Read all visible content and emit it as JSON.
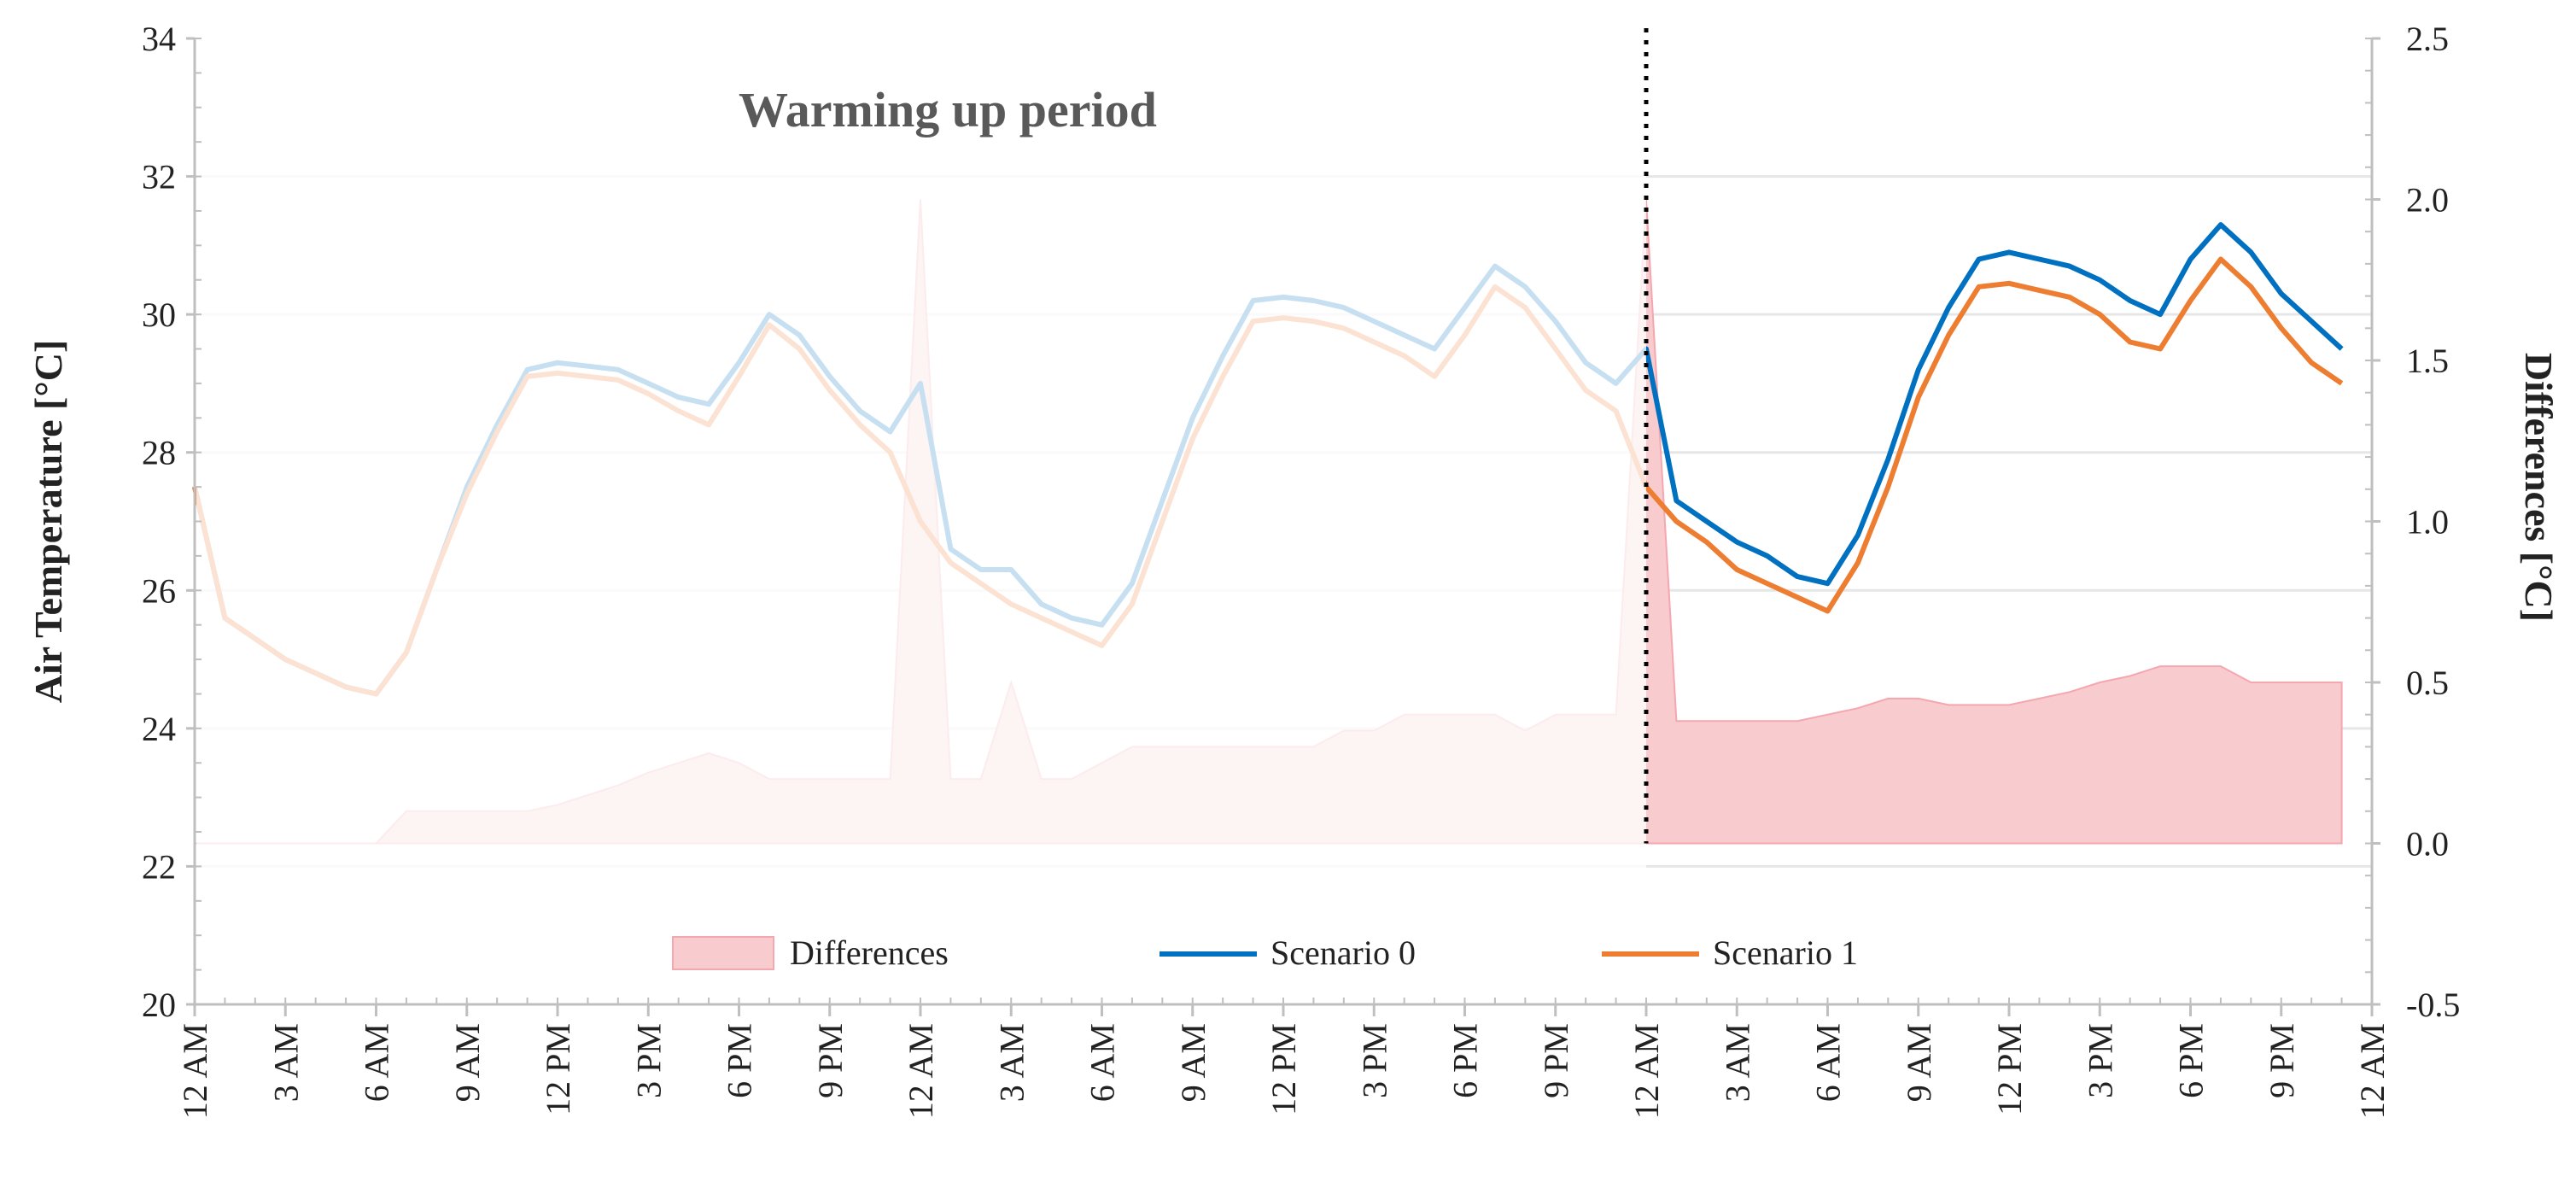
{
  "chart_data": {
    "type": "line",
    "title": "",
    "annotation": "Warming up period",
    "warmup_end_hour": 48,
    "xlabel": "",
    "ylabel_left": "Air Temperature [°C]",
    "ylabel_right": "Differences [°C]",
    "ylim_left": [
      20,
      34
    ],
    "yticks_left": [
      "20",
      "22",
      "24",
      "26",
      "28",
      "30",
      "32",
      "34"
    ],
    "ylim_right": [
      -0.5,
      2.5
    ],
    "yticks_right": [
      "-0.5",
      "0.0",
      "0.5",
      "1.0",
      "1.5",
      "2.0",
      "2.5"
    ],
    "x_range_hours": [
      0,
      72
    ],
    "x_ticks": [
      "12 AM",
      "3 AM",
      "6 AM",
      "9 AM",
      "12 PM",
      "3 PM",
      "6 PM",
      "9 PM",
      "12 AM",
      "3 AM",
      "6 AM",
      "9 AM",
      "12 PM",
      "3 PM",
      "6 PM",
      "9 PM",
      "12 AM",
      "3 AM",
      "6 AM",
      "9 AM",
      "12 PM",
      "3 PM",
      "6 PM",
      "9 PM",
      "12 AM"
    ],
    "legend": [
      "Differences",
      "Scenario 0",
      "Scenario 1"
    ],
    "colors": {
      "scenario0": "#0070C0",
      "scenario1": "#ED7D31",
      "differences_fill": "#F8CBCF",
      "differences_line": "#F4A7AE",
      "grid": "#E6E6E6",
      "axis": "#BFBFBF"
    },
    "series": [
      {
        "name": "Scenario 0",
        "axis": "left",
        "x": [
          0,
          1,
          2,
          3,
          4,
          5,
          6,
          7,
          8,
          9,
          10,
          11,
          12,
          13,
          14,
          15,
          16,
          17,
          18,
          19,
          20,
          21,
          22,
          23,
          24,
          25,
          26,
          27,
          28,
          29,
          30,
          31,
          32,
          33,
          34,
          35,
          36,
          37,
          38,
          39,
          40,
          41,
          42,
          43,
          44,
          45,
          46,
          47,
          48,
          49,
          50,
          51,
          52,
          53,
          54,
          55,
          56,
          57,
          58,
          59,
          60,
          61,
          62,
          63,
          64,
          65,
          66,
          67,
          68,
          69,
          70,
          71
        ],
        "values": [
          27.5,
          25.6,
          25.3,
          25.0,
          24.8,
          24.6,
          24.5,
          25.1,
          26.3,
          27.5,
          28.4,
          29.2,
          29.3,
          29.25,
          29.2,
          29.0,
          28.8,
          28.7,
          29.3,
          30.0,
          29.7,
          29.1,
          28.6,
          28.3,
          29.0,
          26.6,
          26.3,
          26.3,
          25.8,
          25.6,
          25.5,
          26.1,
          27.3,
          28.5,
          29.4,
          30.2,
          30.25,
          30.2,
          30.1,
          29.9,
          29.7,
          29.5,
          30.1,
          30.7,
          30.4,
          29.9,
          29.3,
          29.0,
          29.5,
          27.3,
          27.0,
          26.7,
          26.5,
          26.2,
          26.1,
          26.8,
          27.9,
          29.2,
          30.1,
          30.8,
          30.9,
          30.8,
          30.7,
          30.5,
          30.2,
          30.0,
          30.8,
          31.3,
          30.9,
          30.3,
          29.9,
          29.5
        ]
      },
      {
        "name": "Scenario 1",
        "axis": "left",
        "x": [
          0,
          1,
          2,
          3,
          4,
          5,
          6,
          7,
          8,
          9,
          10,
          11,
          12,
          13,
          14,
          15,
          16,
          17,
          18,
          19,
          20,
          21,
          22,
          23,
          24,
          25,
          26,
          27,
          28,
          29,
          30,
          31,
          32,
          33,
          34,
          35,
          36,
          37,
          38,
          39,
          40,
          41,
          42,
          43,
          44,
          45,
          46,
          47,
          48,
          49,
          50,
          51,
          52,
          53,
          54,
          55,
          56,
          57,
          58,
          59,
          60,
          61,
          62,
          63,
          64,
          65,
          66,
          67,
          68,
          69,
          70,
          71
        ],
        "values": [
          27.5,
          25.6,
          25.3,
          25.0,
          24.8,
          24.6,
          24.5,
          25.1,
          26.3,
          27.4,
          28.3,
          29.1,
          29.15,
          29.1,
          29.05,
          28.85,
          28.6,
          28.4,
          29.1,
          29.85,
          29.5,
          28.9,
          28.4,
          28.0,
          27.0,
          26.4,
          26.1,
          25.8,
          25.6,
          25.4,
          25.2,
          25.8,
          27.0,
          28.2,
          29.1,
          29.9,
          29.95,
          29.9,
          29.8,
          29.6,
          29.4,
          29.1,
          29.7,
          30.4,
          30.1,
          29.5,
          28.9,
          28.6,
          27.5,
          27.0,
          26.7,
          26.3,
          26.1,
          25.9,
          25.7,
          26.4,
          27.5,
          28.8,
          29.7,
          30.4,
          30.45,
          30.35,
          30.25,
          30.0,
          29.6,
          29.5,
          30.2,
          30.8,
          30.4,
          29.8,
          29.3,
          29.0
        ]
      },
      {
        "name": "Differences",
        "axis": "right",
        "type": "area",
        "x": [
          0,
          1,
          2,
          3,
          4,
          5,
          6,
          7,
          8,
          9,
          10,
          11,
          12,
          13,
          14,
          15,
          16,
          17,
          18,
          19,
          20,
          21,
          22,
          23,
          24,
          25,
          26,
          27,
          28,
          29,
          30,
          31,
          32,
          33,
          34,
          35,
          36,
          37,
          38,
          39,
          40,
          41,
          42,
          43,
          44,
          45,
          46,
          47,
          48,
          49,
          50,
          51,
          52,
          53,
          54,
          55,
          56,
          57,
          58,
          59,
          60,
          61,
          62,
          63,
          64,
          65,
          66,
          67,
          68,
          69,
          70,
          71
        ],
        "values": [
          0.0,
          0.0,
          0.0,
          0.0,
          0.0,
          0.0,
          0.0,
          0.1,
          0.1,
          0.1,
          0.1,
          0.1,
          0.12,
          0.15,
          0.18,
          0.22,
          0.25,
          0.28,
          0.25,
          0.2,
          0.2,
          0.2,
          0.2,
          0.2,
          2.0,
          0.2,
          0.2,
          0.5,
          0.2,
          0.2,
          0.25,
          0.3,
          0.3,
          0.3,
          0.3,
          0.3,
          0.3,
          0.3,
          0.35,
          0.35,
          0.4,
          0.4,
          0.4,
          0.4,
          0.35,
          0.4,
          0.4,
          0.4,
          2.0,
          0.38,
          0.38,
          0.38,
          0.38,
          0.38,
          0.4,
          0.42,
          0.45,
          0.45,
          0.43,
          0.43,
          0.43,
          0.45,
          0.47,
          0.5,
          0.52,
          0.55,
          0.55,
          0.55,
          0.5,
          0.5,
          0.5,
          0.5
        ]
      }
    ]
  }
}
